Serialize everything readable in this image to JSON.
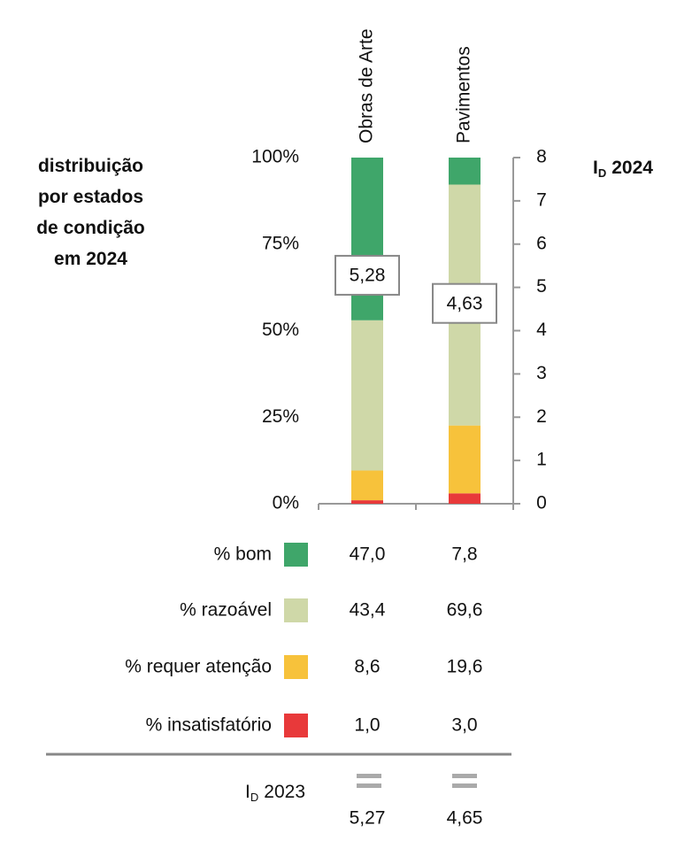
{
  "chart_data": {
    "type": "bar",
    "stacked": true,
    "title": "distribuição por estados de condição em 2024",
    "categories": [
      "Obras de Arte",
      "Pavimentos"
    ],
    "series": [
      {
        "name": "% bom",
        "color": "#3fa66a",
        "values": [
          47.0,
          7.8
        ],
        "value_labels": [
          "47,0",
          "7,8"
        ]
      },
      {
        "name": "% razoável",
        "color": "#cfd8a8",
        "values": [
          43.4,
          69.6
        ],
        "value_labels": [
          "43,4",
          "69,6"
        ]
      },
      {
        "name": "% requer atenção",
        "color": "#f7c23b",
        "values": [
          8.6,
          19.6
        ],
        "value_labels": [
          "8,6",
          "19,6"
        ]
      },
      {
        "name": "% insatisfatório",
        "color": "#e8393a",
        "values": [
          1.0,
          3.0
        ],
        "value_labels": [
          "1,0",
          "3,0"
        ]
      }
    ],
    "ylim": [
      0,
      100
    ],
    "yticks": [
      {
        "value": 0,
        "label": "0%"
      },
      {
        "value": 25,
        "label": "25%"
      },
      {
        "value": 50,
        "label": "50%"
      },
      {
        "value": 75,
        "label": "75%"
      },
      {
        "value": 100,
        "label": "100%"
      }
    ],
    "y2lim": [
      0,
      8
    ],
    "y2ticks": [
      0,
      1,
      2,
      3,
      4,
      5,
      6,
      7,
      8
    ],
    "y2_label": {
      "symbol": "I",
      "subscript": "D",
      "text": "2024"
    },
    "id_2024": {
      "axis": "y2",
      "values": [
        5.28,
        4.63
      ],
      "value_labels": [
        "5,28",
        "4,63"
      ]
    },
    "id_2023": {
      "label": {
        "symbol": "I",
        "subscript": "D",
        "text": "2023"
      },
      "values": [
        5.27,
        4.65
      ],
      "value_labels": [
        "5,27",
        "4,65"
      ]
    },
    "grid": false
  }
}
